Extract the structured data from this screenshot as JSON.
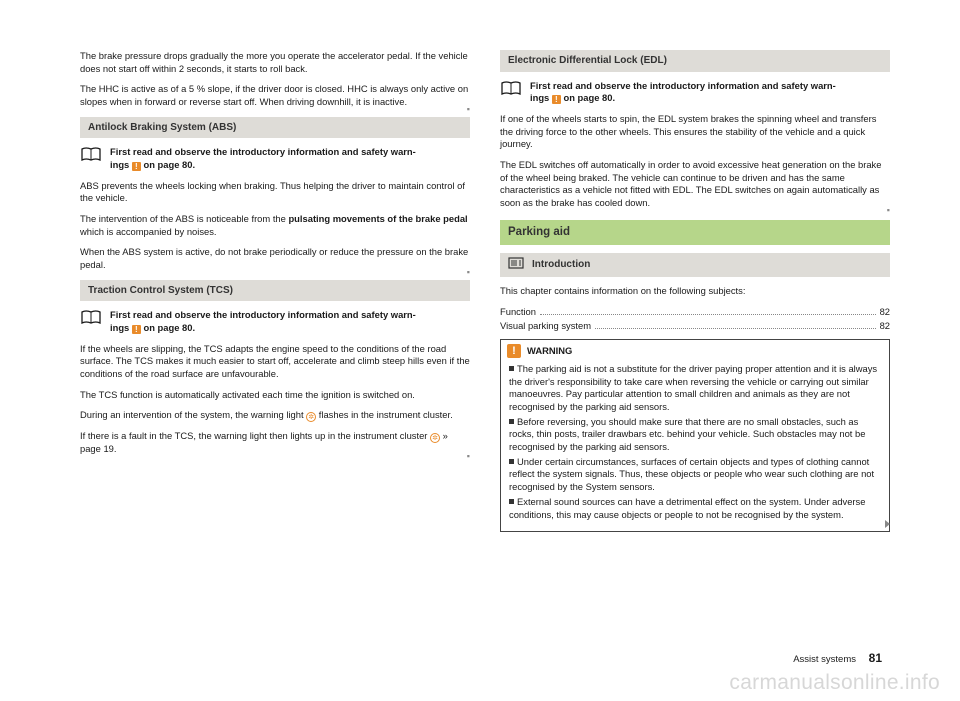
{
  "colors": {
    "heading_bg": "#dedcd7",
    "green_bg": "#b6d68a",
    "accent": "#e98b2a",
    "text": "#1a1a1a",
    "muted": "#888888",
    "watermark": "#d7d7d7",
    "border": "#444444"
  },
  "left": {
    "p1": "The brake pressure drops gradually the more you operate the accelerator pedal. If the vehicle does not start off within 2 seconds, it starts to roll back.",
    "p2": "The HHC is active as of a 5 % slope, if the driver door is closed. HHC is always only active on slopes when in forward or reverse start off. When driving downhill, it is inactive.",
    "abs": {
      "title": "Antilock Braking System (ABS)",
      "read_a": "First read and observe the introductory information and safety warn-",
      "read_b": "ings ",
      "read_c": " on page 80.",
      "b1": "ABS prevents the wheels locking when braking. Thus helping the driver to main­tain control of the vehicle.",
      "b2a": "The intervention of the ABS is noticeable from the ",
      "b2b": "pulsating movements of the brake pedal",
      "b2c": " which is accompanied by noises.",
      "b3": "When the ABS system is active, do not brake periodically or reduce the pressure on the brake pedal."
    },
    "tcs": {
      "title": "Traction Control System (TCS)",
      "read_a": "First read and observe the introductory information and safety warn-",
      "read_b": "ings ",
      "read_c": " on page 80.",
      "b1": "If the wheels are slipping, the TCS adapts the engine speed to the conditions of the road surface. The TCS makes it much easier to start off, accelerate and climb steep hills even if the conditions of the road surface are unfavourable.",
      "b2": "The TCS function is automatically activated each time the ignition is switched on.",
      "b3a": "During an intervention of the system, the warning light ",
      "b3b": " flashes in the instru­ment cluster.",
      "b4a": "If there is a fault in the TCS, the warning light then lights up in the instrument cluster ",
      "b4b": " » page 19",
      "b4c": "."
    }
  },
  "right": {
    "edl": {
      "title": "Electronic Differential Lock (EDL)",
      "read_a": "First read and observe the introductory information and safety warn-",
      "read_b": "ings ",
      "read_c": " on page 80.",
      "b1": "If one of the wheels starts to spin, the EDL system brakes the spinning wheel and transfers the driving force to the other wheels. This ensures the stability of the vehicle and a quick journey.",
      "b2": "The EDL switches off automatically in order to avoid excessive heat generation on the brake of the wheel being braked. The vehicle can continue to be driven and has the same characteristics as a vehicle not fitted with EDL. The EDL switches on again automatically as soon as the brake has cooled down."
    },
    "parking": {
      "title": "Parking aid",
      "intro_label": "Introduction",
      "lead": "This chapter contains information on the following subjects:",
      "toc": [
        {
          "label": "Function",
          "page": "82"
        },
        {
          "label": "Visual parking system",
          "page": "82"
        }
      ],
      "warning": {
        "label": "WARNING",
        "items": [
          "The parking aid is not a substitute for the driver paying proper attention and it is always the driver's responsibility to take care when reversing the vehicle or carrying out similar manoeuvres. Pay particular attention to small children and animals as they are not recognised by the parking aid sensors.",
          "Before reversing, you should make sure that there are no small obstacles, such as rocks, thin posts, trailer drawbars etc. behind your vehicle. Such ob­stacles may not be recognised by the parking aid sensors.",
          "Under certain circumstances, surfaces of certain objects and types of cloth­ing cannot reflect the system signals. Thus, these objects or people who wear such clothing are not recognised by the System sensors.",
          "External sound sources can have a detrimental effect on the system. Under adverse conditions, this may cause objects or people to not be recognised by the system."
        ]
      }
    }
  },
  "footer": {
    "section": "Assist systems",
    "page": "81"
  },
  "watermark": "carmanualsonline.info"
}
